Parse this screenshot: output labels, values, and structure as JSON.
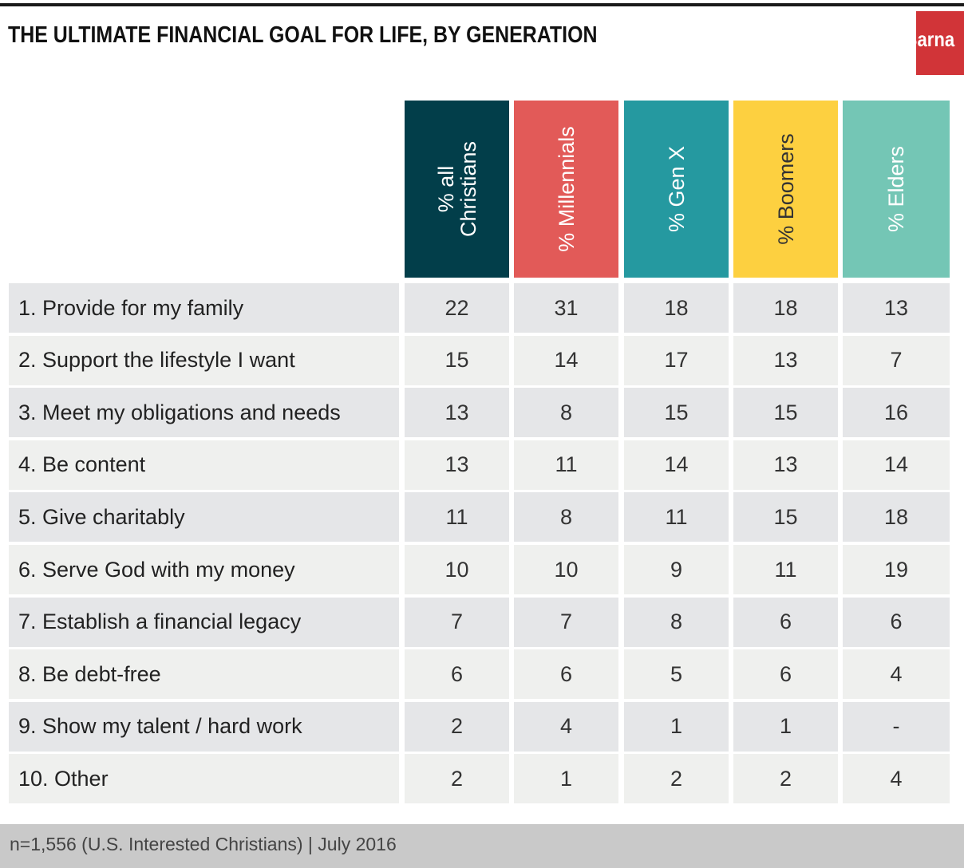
{
  "chart_data": {
    "type": "table",
    "title": "THE ULTIMATE FINANCIAL GOAL FOR LIFE, BY GENERATION",
    "logo": "Barna",
    "columns": [
      {
        "label": "% all\nChristians",
        "color": "#023e4a"
      },
      {
        "label": "% Millennials",
        "color": "#e25a58"
      },
      {
        "label": "% Gen X",
        "color": "#2599a0"
      },
      {
        "label": "% Boomers",
        "color": "#fdd040",
        "text_color": "#333333"
      },
      {
        "label": "% Elders",
        "color": "#74c6b5"
      }
    ],
    "rows": [
      {
        "label": "1. Provide for my family",
        "values": [
          "22",
          "31",
          "18",
          "18",
          "13"
        ]
      },
      {
        "label": "2. Support the lifestyle I want",
        "values": [
          "15",
          "14",
          "17",
          "13",
          "7"
        ]
      },
      {
        "label": "3. Meet my obligations and needs",
        "values": [
          "13",
          "8",
          "15",
          "15",
          "16"
        ]
      },
      {
        "label": "4. Be content",
        "values": [
          "13",
          "11",
          "14",
          "13",
          "14"
        ]
      },
      {
        "label": "5. Give charitably",
        "values": [
          "11",
          "8",
          "11",
          "15",
          "18"
        ]
      },
      {
        "label": "6. Serve God with my money",
        "values": [
          "10",
          "10",
          "9",
          "11",
          "19"
        ]
      },
      {
        "label": "7. Establish a financial legacy",
        "values": [
          "7",
          "7",
          "8",
          "6",
          "6"
        ]
      },
      {
        "label": "8. Be debt-free",
        "values": [
          "6",
          "6",
          "5",
          "6",
          "4"
        ]
      },
      {
        "label": "9. Show my talent / hard work",
        "values": [
          "2",
          "4",
          "1",
          "1",
          "-"
        ]
      },
      {
        "label": "10. Other",
        "values": [
          "2",
          "1",
          "2",
          "2",
          "4"
        ]
      }
    ],
    "footnote": "n=1,556 (U.S. Interested Christians) | July 2016"
  }
}
